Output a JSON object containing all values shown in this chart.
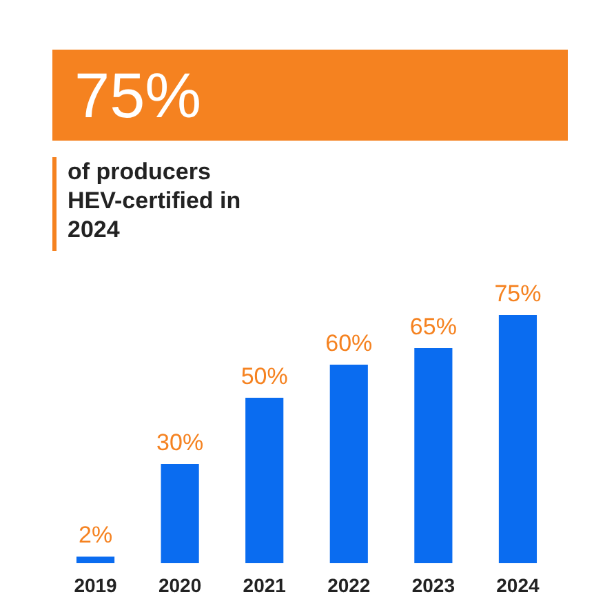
{
  "chart_data": {
    "type": "bar",
    "title": "75%",
    "subtitle": "of producers HEV-certified in 2024",
    "categories": [
      "2019",
      "2020",
      "2021",
      "2022",
      "2023",
      "2024"
    ],
    "values": [
      2,
      30,
      50,
      60,
      65,
      75
    ],
    "value_labels": [
      "2%",
      "30%",
      "50%",
      "60%",
      "65%",
      "75%"
    ],
    "color": "#0a6cf0"
  }
}
